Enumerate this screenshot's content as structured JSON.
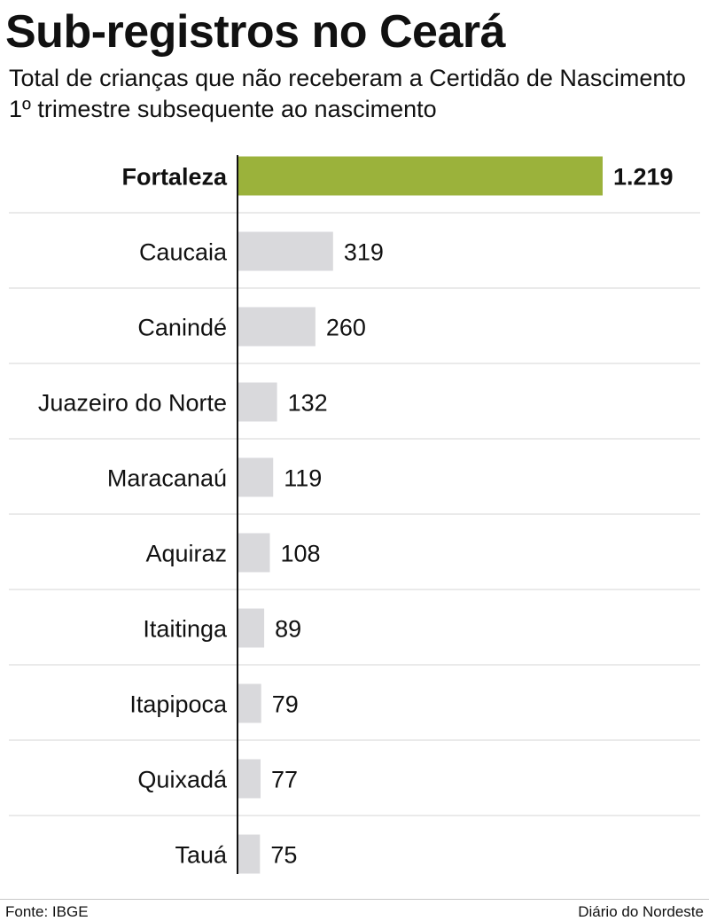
{
  "header": {
    "title": "Sub-registros no Ceará",
    "subtitle": "Total de crianças que não receberam a Certidão de Nascimento 1º trimestre subsequente ao nascimento"
  },
  "footer": {
    "source": "Fonte: IBGE",
    "credit": "Diário do Nordeste"
  },
  "colors": {
    "highlight_bar": "#9bb23b",
    "bar": "#d9d9dc",
    "axis": "#111111",
    "separator": "#d4d4d4"
  },
  "chart_data": {
    "type": "bar",
    "orientation": "horizontal",
    "categories": [
      "Fortaleza",
      "Caucaia",
      "Canindé",
      "Juazeiro do Norte",
      "Maracanaú",
      "Aquiraz",
      "Itaitinga",
      "Itapipoca",
      "Quixadá",
      "Tauá"
    ],
    "values": [
      1219,
      319,
      260,
      132,
      119,
      108,
      89,
      79,
      77,
      75
    ],
    "value_labels": [
      "1.219",
      "319",
      "260",
      "132",
      "119",
      "108",
      "89",
      "79",
      "77",
      "75"
    ],
    "highlight_index": 0,
    "title": "Sub-registros no Ceará",
    "xlabel": "",
    "ylabel": "",
    "xlim": [
      0,
      1219
    ],
    "grid": false,
    "legend": "none"
  }
}
